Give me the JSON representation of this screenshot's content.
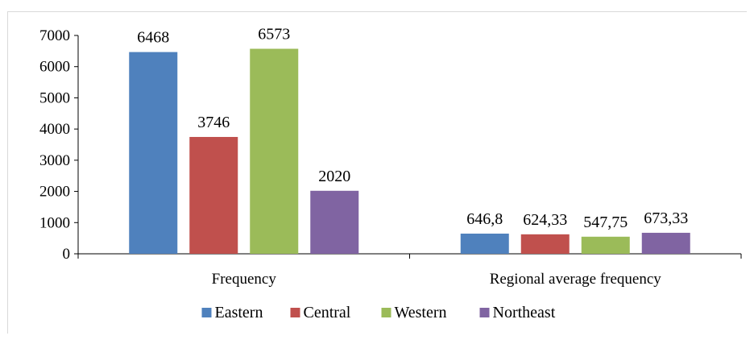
{
  "chart_data": {
    "type": "bar",
    "categories": [
      "Frequency",
      "Regional average frequency"
    ],
    "series": [
      {
        "name": "Eastern",
        "values": [
          6468,
          646.8
        ],
        "labels": [
          "6468",
          "646,8"
        ],
        "color": "#4f81bd"
      },
      {
        "name": "Central",
        "values": [
          3746,
          624.33
        ],
        "labels": [
          "3746",
          "624,33"
        ],
        "color": "#c0504d"
      },
      {
        "name": "Western",
        "values": [
          6573,
          547.75
        ],
        "labels": [
          "6573",
          "547,75"
        ],
        "color": "#9bbb59"
      },
      {
        "name": "Northeast",
        "values": [
          2020,
          673.33
        ],
        "labels": [
          "2020",
          "673,33"
        ],
        "color": "#8064a2"
      }
    ],
    "yticks": [
      "0",
      "1000",
      "2000",
      "3000",
      "4000",
      "5000",
      "6000",
      "7000"
    ],
    "ylim": [
      0,
      7000
    ],
    "grid": false,
    "legend_position": "bottom"
  }
}
